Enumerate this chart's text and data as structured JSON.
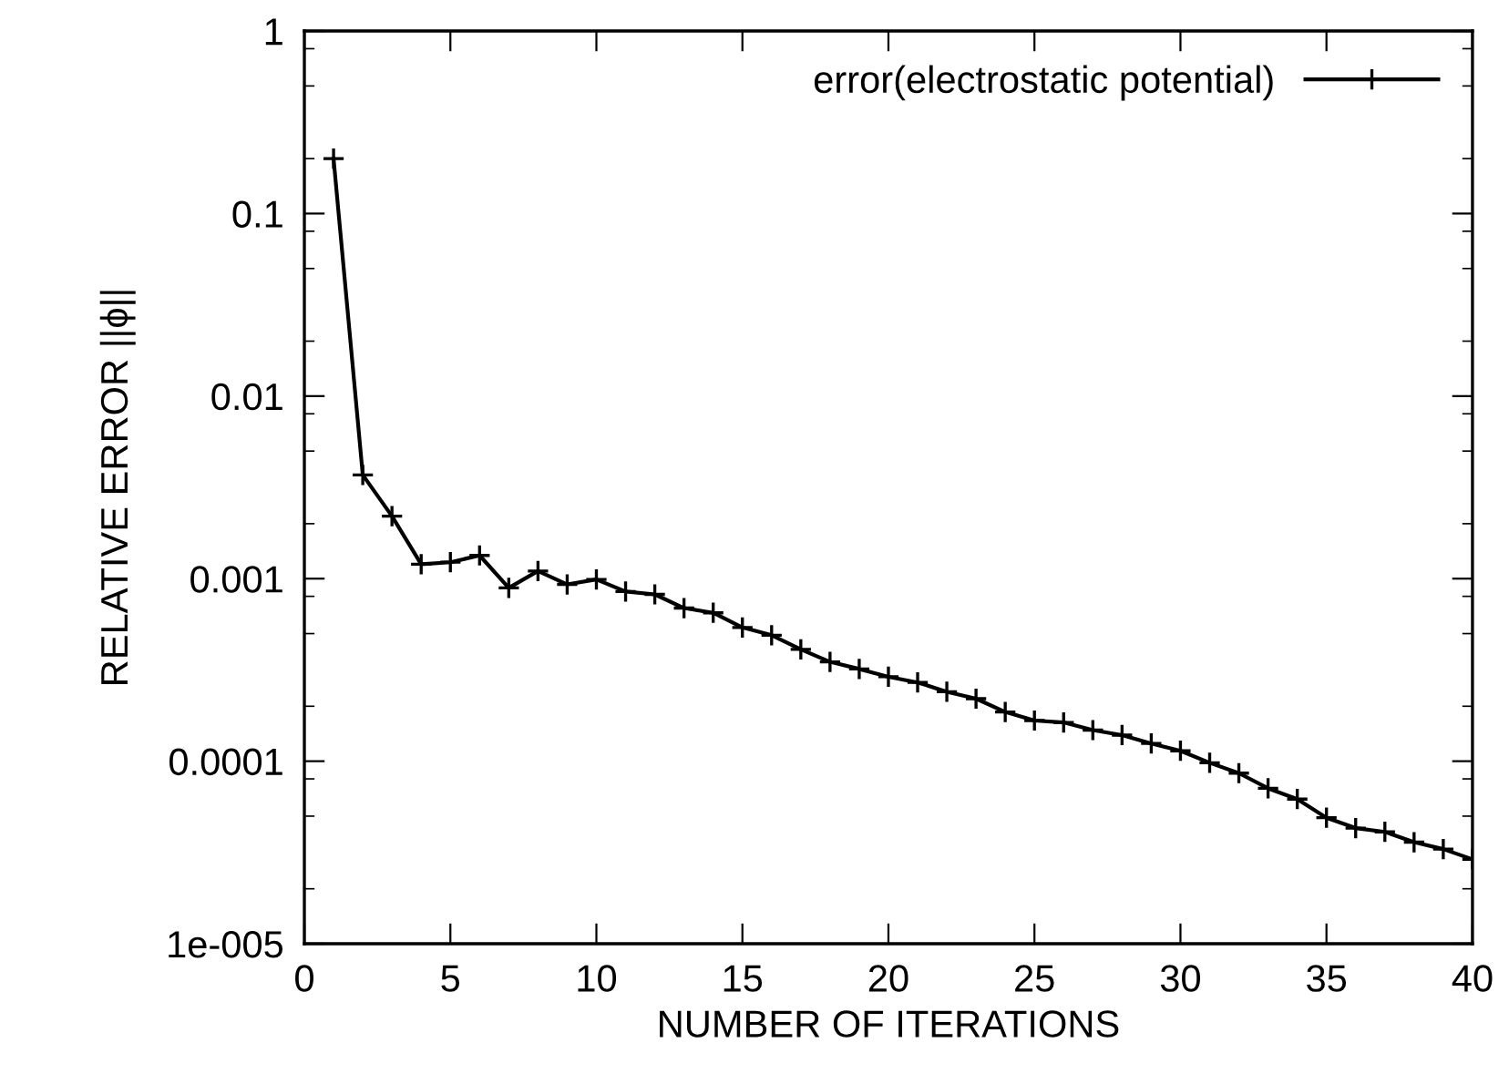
{
  "chart_data": {
    "type": "line",
    "xlabel": "NUMBER OF ITERATIONS",
    "ylabel": "RELATIVE ERROR ||ϕ||",
    "x": [
      1,
      2,
      3,
      4,
      5,
      6,
      7,
      8,
      9,
      10,
      11,
      12,
      13,
      14,
      15,
      16,
      17,
      18,
      19,
      20,
      21,
      22,
      23,
      24,
      25,
      26,
      27,
      28,
      29,
      30,
      31,
      32,
      33,
      34,
      35,
      36,
      37,
      38,
      39,
      40
    ],
    "series": [
      {
        "name": "error(electrostatic potential)",
        "color": "#000000",
        "values": [
          0.2,
          0.0037,
          0.0022,
          0.0012,
          0.00123,
          0.00134,
          0.00089,
          0.0011,
          0.00093,
          0.00099,
          0.00085,
          0.00082,
          0.00069,
          0.00065,
          0.00054,
          0.00049,
          0.00041,
          0.00035,
          0.00032,
          0.00029,
          0.00027,
          0.00024,
          0.00022,
          0.000186,
          0.000167,
          0.000163,
          0.000148,
          0.000139,
          0.000125,
          0.000114,
          9.8e-05,
          8.6e-05,
          7.1e-05,
          6.2e-05,
          4.9e-05,
          4.3e-05,
          4.1e-05,
          3.6e-05,
          3.3e-05,
          2.9e-05
        ]
      }
    ],
    "log": "y",
    "xlim": [
      0,
      40
    ],
    "xticks": [
      0,
      5,
      10,
      15,
      20,
      25,
      30,
      35,
      40
    ],
    "ylim": [
      1e-05,
      1
    ],
    "yticks": [
      {
        "value": 1e-05,
        "label": "1e-005"
      },
      0.0001,
      0.001,
      0.01,
      0.1,
      1
    ],
    "grid": false,
    "legend": "top right",
    "marker": "cross",
    "line_style": "solid"
  }
}
